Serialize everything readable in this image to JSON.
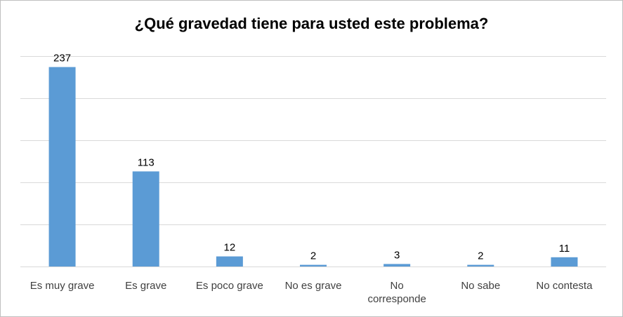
{
  "chart_data": {
    "type": "bar",
    "title": "¿Qué gravedad tiene para usted este problema?",
    "categories": [
      [
        "Es muy grave"
      ],
      [
        "Es grave"
      ],
      [
        "Es poco grave"
      ],
      [
        "No es grave"
      ],
      [
        "No",
        "corresponde"
      ],
      [
        "No sabe"
      ],
      [
        "No contesta"
      ]
    ],
    "values": [
      237,
      113,
      12,
      2,
      3,
      2,
      11
    ],
    "ylim": [
      0,
      250
    ],
    "grid": true,
    "legend": "none",
    "bar_color": "#5B9BD5",
    "grid_color": "#D9D9D9"
  }
}
